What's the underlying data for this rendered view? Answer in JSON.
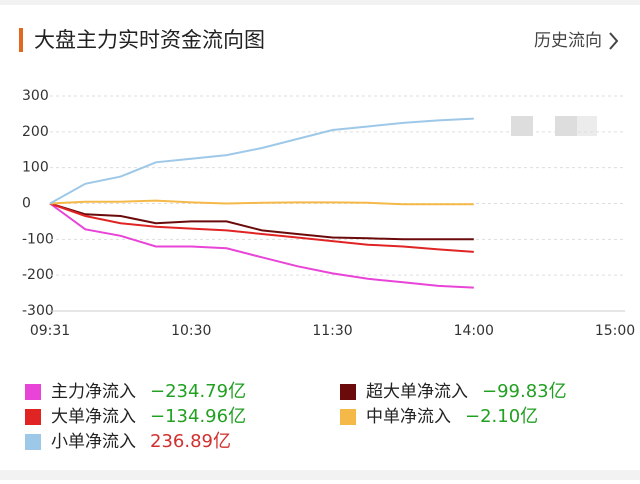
{
  "header": {
    "title": "大盘主力实时资金流向图",
    "link": "历史流向"
  },
  "chart_data": {
    "type": "line",
    "categories": [
      "09:31",
      null,
      null,
      null,
      "10:30",
      null,
      null,
      null,
      "11:30",
      null,
      null,
      null,
      "14:00",
      null,
      null,
      null,
      "15:00"
    ],
    "ylim": [
      -300,
      300
    ],
    "yticks": [
      300,
      200,
      100,
      0,
      -100,
      -200,
      -300
    ],
    "grid": true,
    "series": [
      {
        "name": "主力净流入",
        "color": "#e844d8",
        "values": [
          0,
          -72,
          -90,
          -120,
          -120,
          -125,
          -150,
          -175,
          -195,
          -210,
          -220,
          -230,
          -234.79,
          null,
          null,
          null,
          null
        ],
        "total": -234.79,
        "total_label": "−234.79亿"
      },
      {
        "name": "超大单净流入",
        "color": "#6b0a0a",
        "values": [
          0,
          -30,
          -35,
          -55,
          -50,
          -50,
          -75,
          -85,
          -95,
          -97,
          -100,
          -100,
          -99.83,
          null,
          null,
          null,
          null
        ],
        "total": -99.83,
        "total_label": "−99.83亿"
      },
      {
        "name": "大单净流入",
        "color": "#e02424",
        "values": [
          0,
          -35,
          -55,
          -65,
          -70,
          -75,
          -85,
          -95,
          -105,
          -115,
          -120,
          -128,
          -134.96,
          null,
          null,
          null,
          null
        ],
        "total": -134.96,
        "total_label": "−134.96亿"
      },
      {
        "name": "中单净流入",
        "color": "#f5b94a",
        "values": [
          0,
          5,
          5,
          8,
          3,
          0,
          2,
          3,
          3,
          2,
          -2,
          -2,
          -2.1,
          null,
          null,
          null,
          null
        ],
        "total": -2.1,
        "total_label": "−2.10亿"
      },
      {
        "name": "小单净流入",
        "color": "#9ec8e8",
        "values": [
          0,
          55,
          75,
          115,
          125,
          135,
          155,
          180,
          205,
          215,
          225,
          232,
          236.89,
          null,
          null,
          null,
          null
        ],
        "total": 236.89,
        "total_label": "236.89亿"
      }
    ]
  }
}
